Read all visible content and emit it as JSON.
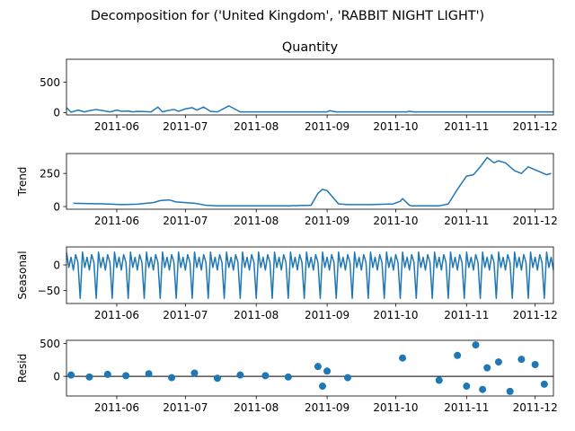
{
  "suptitle": "Decomposition for ('United Kingdom', 'RABBIT NIGHT LIGHT')",
  "colors": {
    "line": "#1f77b4",
    "axis": "#000000",
    "zero_line": "#000000"
  },
  "x_tick_labels": [
    "2011-06",
    "2011-07",
    "2011-08",
    "2011-09",
    "2011-10",
    "2011-11",
    "2011-12"
  ],
  "chart_data": [
    {
      "type": "line",
      "title": "Quantity",
      "ylabel": "",
      "x_range": [
        "2011-05-10",
        "2011-12-09"
      ],
      "ylim": [
        -40,
        880
      ],
      "y_ticks": [
        0,
        500
      ],
      "x": [
        "2011-05-10",
        "2011-05-12",
        "2011-05-15",
        "2011-05-18",
        "2011-05-20",
        "2011-05-23",
        "2011-05-26",
        "2011-05-29",
        "2011-06-01",
        "2011-06-03",
        "2011-06-06",
        "2011-06-08",
        "2011-06-10",
        "2011-06-13",
        "2011-06-16",
        "2011-06-19",
        "2011-06-21",
        "2011-06-23",
        "2011-06-26",
        "2011-06-28",
        "2011-07-01",
        "2011-07-04",
        "2011-07-06",
        "2011-07-09",
        "2011-07-12",
        "2011-07-15",
        "2011-07-20",
        "2011-07-25",
        "2011-07-30",
        "2011-08-04",
        "2011-08-09",
        "2011-08-14",
        "2011-08-19",
        "2011-08-24",
        "2011-08-27",
        "2011-08-28",
        "2011-08-30",
        "2011-08-31",
        "2011-09-01",
        "2011-09-02",
        "2011-09-05",
        "2011-09-08",
        "2011-09-12",
        "2011-09-16",
        "2011-09-20",
        "2011-09-24",
        "2011-09-28",
        "2011-10-01",
        "2011-10-03",
        "2011-10-05",
        "2011-10-06",
        "2011-10-07",
        "2011-10-09",
        "2011-10-12",
        "2011-10-16",
        "2011-10-20",
        "2011-10-22",
        "2011-10-24",
        "2011-10-25",
        "2011-10-27",
        "2011-10-28",
        "2011-10-29",
        "2011-10-31",
        "2011-11-01",
        "2011-11-02",
        "2011-11-03",
        "2011-11-04",
        "2011-11-05",
        "2011-11-06",
        "2011-11-07",
        "2011-11-08",
        "2011-11-09",
        "2011-11-10",
        "2011-11-11",
        "2011-11-12",
        "2011-11-13",
        "2011-11-14",
        "2011-11-15",
        "2011-11-16",
        "2011-11-17",
        "2011-11-18",
        "2011-11-19",
        "2011-11-20",
        "2011-11-21",
        "2011-11-22",
        "2011-11-23",
        "2011-11-24",
        "2011-11-25",
        "2011-11-26",
        "2011-11-27",
        "2011-11-28",
        "2011-11-29",
        "2011-11-30",
        "2011-12-01",
        "2011-12-02",
        "2011-12-03",
        "2011-12-04",
        "2011-12-05",
        "2011-12-06",
        "2011-12-07",
        "2011-12-08",
        "2011-12-09"
      ],
      "values": [
        80,
        5,
        40,
        10,
        30,
        50,
        30,
        10,
        40,
        20,
        25,
        10,
        20,
        15,
        10,
        90,
        10,
        30,
        50,
        20,
        60,
        80,
        40,
        90,
        20,
        10,
        110,
        10,
        10,
        10,
        10,
        10,
        10,
        10,
        10,
        10,
        10,
        10,
        10,
        30,
        10,
        10,
        10,
        10,
        10,
        10,
        10,
        10,
        10,
        10,
        10,
        20,
        10,
        10,
        10,
        10,
        10,
        10,
        10,
        10,
        10,
        10,
        10,
        10,
        10,
        10,
        10,
        10,
        10,
        10,
        10,
        10,
        10,
        10,
        10,
        10,
        10,
        10,
        10,
        10,
        10,
        10,
        10,
        10,
        10,
        10,
        10,
        10,
        10,
        10,
        10,
        10,
        10,
        10,
        10,
        10,
        10,
        10,
        10,
        10,
        10,
        10
      ]
    },
    {
      "type": "line",
      "title": "",
      "ylabel": "Trend",
      "x_range": [
        "2011-05-10",
        "2011-12-09"
      ],
      "ylim": [
        -20,
        400
      ],
      "y_ticks": [
        0,
        250
      ],
      "x": [
        "2011-05-13",
        "2011-05-20",
        "2011-05-27",
        "2011-06-03",
        "2011-06-10",
        "2011-06-17",
        "2011-06-20",
        "2011-06-24",
        "2011-06-27",
        "2011-07-01",
        "2011-07-05",
        "2011-07-10",
        "2011-07-15",
        "2011-07-25",
        "2011-08-05",
        "2011-08-15",
        "2011-08-25",
        "2011-08-28",
        "2011-08-30",
        "2011-09-01",
        "2011-09-03",
        "2011-09-06",
        "2011-09-10",
        "2011-09-20",
        "2011-09-30",
        "2011-10-03",
        "2011-10-04",
        "2011-10-07",
        "2011-10-08",
        "2011-10-20",
        "2011-10-24",
        "2011-10-28",
        "2011-11-01",
        "2011-11-04",
        "2011-11-07",
        "2011-11-10",
        "2011-11-13",
        "2011-11-15",
        "2011-11-18",
        "2011-11-22",
        "2011-11-25",
        "2011-11-28",
        "2011-12-02",
        "2011-12-06",
        "2011-12-08"
      ],
      "values": [
        25,
        22,
        20,
        15,
        18,
        30,
        45,
        50,
        35,
        30,
        25,
        10,
        5,
        5,
        5,
        5,
        10,
        100,
        130,
        120,
        80,
        20,
        15,
        15,
        20,
        40,
        60,
        10,
        5,
        5,
        20,
        130,
        230,
        240,
        300,
        370,
        330,
        345,
        330,
        270,
        250,
        300,
        270,
        240,
        250
      ]
    },
    {
      "type": "line",
      "title": "",
      "ylabel": "Seasonal",
      "x_range": [
        "2011-05-10",
        "2011-12-09"
      ],
      "ylim": [
        -75,
        35
      ],
      "y_ticks": [
        -50,
        0
      ],
      "weekly_pattern": [
        25,
        -5,
        15,
        -10,
        20,
        5,
        -65
      ]
    },
    {
      "type": "scatter",
      "title": "",
      "ylabel": "Resid",
      "x_range": [
        "2011-05-10",
        "2011-12-09"
      ],
      "ylim": [
        -300,
        550
      ],
      "y_ticks": [
        0,
        500
      ],
      "x": [
        "2011-05-12",
        "2011-05-20",
        "2011-05-28",
        "2011-06-05",
        "2011-06-15",
        "2011-06-25",
        "2011-07-05",
        "2011-07-15",
        "2011-07-25",
        "2011-08-05",
        "2011-08-15",
        "2011-08-28",
        "2011-08-30",
        "2011-09-01",
        "2011-09-10",
        "2011-10-04",
        "2011-10-20",
        "2011-10-28",
        "2011-11-01",
        "2011-11-05",
        "2011-11-08",
        "2011-11-10",
        "2011-11-15",
        "2011-11-20",
        "2011-11-25",
        "2011-12-01",
        "2011-12-05"
      ],
      "values": [
        20,
        -10,
        30,
        10,
        40,
        -20,
        50,
        -30,
        20,
        10,
        -10,
        150,
        -150,
        80,
        -20,
        280,
        -60,
        320,
        -150,
        480,
        -200,
        130,
        220,
        -230,
        260,
        180,
        -120
      ]
    }
  ]
}
